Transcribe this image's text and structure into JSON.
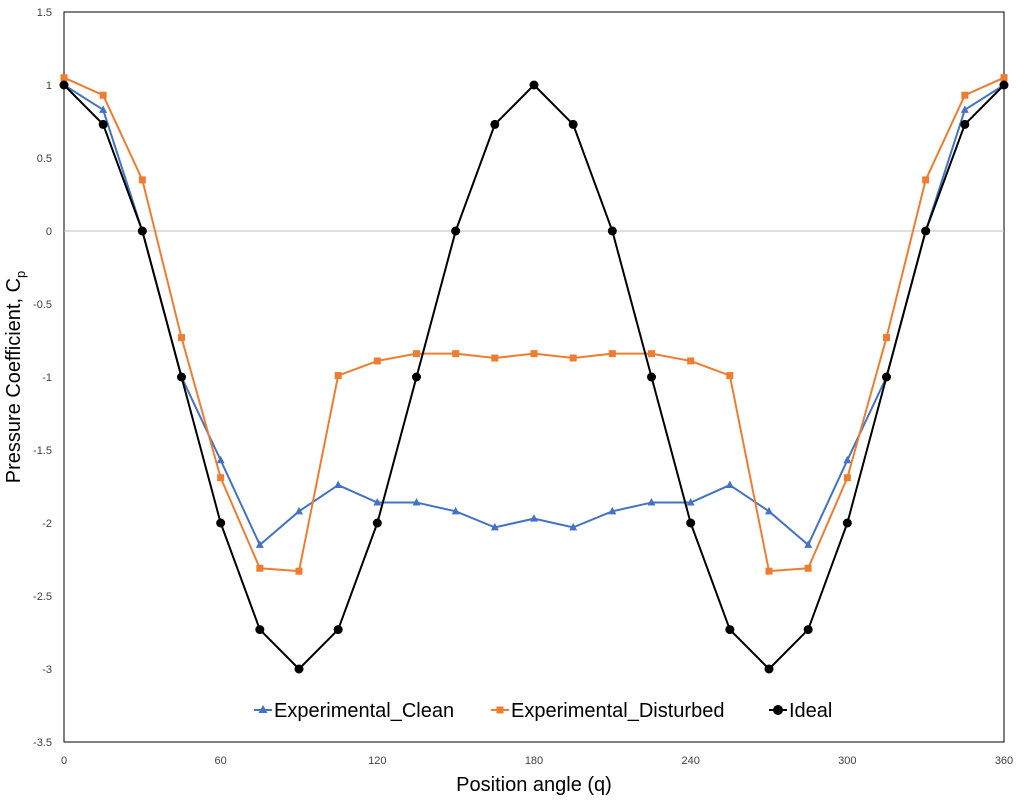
{
  "chart_data": {
    "type": "line",
    "title": "",
    "xlabel": "Position angle (q)",
    "ylabel_main": "Pressure Coefficient, C",
    "ylabel_sub": "p",
    "xlim": [
      0,
      360
    ],
    "ylim": [
      -3.5,
      1.5
    ],
    "xticks": [
      0,
      60,
      120,
      180,
      240,
      300,
      360
    ],
    "yticks": [
      1.5,
      1,
      0.5,
      0,
      -0.5,
      -1,
      -1.5,
      -2,
      -2.5,
      -3,
      -3.5
    ],
    "legend_position": "bottom-inside",
    "series": [
      {
        "name": "Experimental_Clean",
        "color": "#4472C4",
        "marker": "triangle",
        "x": [
          0,
          15,
          30,
          45,
          60,
          75,
          90,
          105,
          120,
          135,
          150,
          165,
          180,
          195,
          210,
          225,
          240,
          255,
          270,
          285,
          300,
          315,
          330,
          345,
          360
        ],
        "values": [
          1.0,
          0.83,
          0.0,
          -1.0,
          -1.57,
          -2.15,
          -1.92,
          -1.74,
          -1.86,
          -1.86,
          -1.92,
          -2.03,
          -1.97,
          -2.03,
          -1.92,
          -1.86,
          -1.86,
          -1.74,
          -1.92,
          -2.15,
          -1.57,
          -1.0,
          0.0,
          0.83,
          1.0
        ]
      },
      {
        "name": "Experimental_Disturbed",
        "color": "#ED7D31",
        "marker": "square",
        "x": [
          0,
          15,
          30,
          45,
          60,
          75,
          90,
          105,
          120,
          135,
          150,
          165,
          180,
          195,
          210,
          225,
          240,
          255,
          270,
          285,
          300,
          315,
          330,
          345,
          360
        ],
        "values": [
          1.05,
          0.93,
          0.35,
          -0.73,
          -1.69,
          -2.31,
          -2.33,
          -0.99,
          -0.89,
          -0.84,
          -0.84,
          -0.87,
          -0.84,
          -0.87,
          -0.84,
          -0.84,
          -0.89,
          -0.99,
          -2.33,
          -2.31,
          -1.69,
          -0.73,
          0.35,
          0.93,
          1.05
        ]
      },
      {
        "name": "Ideal",
        "color": "#000000",
        "marker": "circle",
        "x": [
          0,
          15,
          30,
          45,
          60,
          75,
          90,
          105,
          120,
          135,
          150,
          165,
          180,
          195,
          210,
          225,
          240,
          255,
          270,
          285,
          300,
          315,
          330,
          345,
          360
        ],
        "values": [
          1.0,
          0.73,
          0.0,
          -1.0,
          -2.0,
          -2.73,
          -3.0,
          -2.73,
          -2.0,
          -1.0,
          0.0,
          0.73,
          1.0,
          0.73,
          0.0,
          -1.0,
          -2.0,
          -2.73,
          -3.0,
          -2.73,
          -2.0,
          -1.0,
          0.0,
          0.73,
          1.0
        ]
      }
    ]
  }
}
